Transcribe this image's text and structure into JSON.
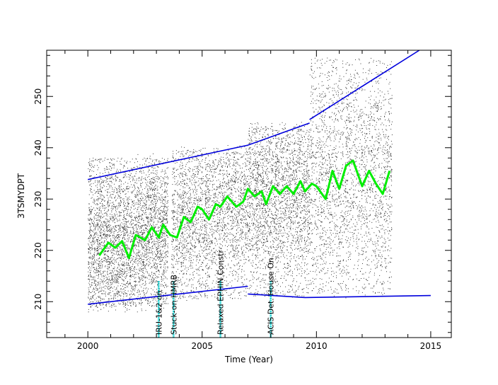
{
  "chart_data": {
    "type": "scatter",
    "title": "",
    "xlabel": "Time (Year)",
    "ylabel": "3TSMYDPT",
    "xlim": [
      1998.2,
      2015.9
    ],
    "ylim": [
      203.0,
      259.0
    ],
    "x_ticks": [
      2000,
      2005,
      2010,
      2015
    ],
    "y_ticks": [
      210,
      220,
      230,
      240,
      250
    ],
    "grid": false,
    "colors": {
      "scatter": "#000000",
      "moving_average": "#00ee00",
      "envelope": "#0000dd",
      "events": "#00cccc"
    },
    "series": [
      {
        "kind": "scatter-density",
        "segments": [
          {
            "x_start": 2000.0,
            "x_end": 2003.5,
            "y_min": 209.0,
            "y_max": 238.0
          },
          {
            "x_start": 2003.65,
            "x_end": 2007.0,
            "y_min": 210.5,
            "y_max": 239.5
          },
          {
            "x_start": 2007.0,
            "x_end": 2009.7,
            "y_min": 211.0,
            "y_max": 244.0
          },
          {
            "x_start": 2009.7,
            "x_end": 2013.3,
            "y_min": 211.5,
            "y_max": 257.5
          }
        ]
      },
      {
        "kind": "moving-average",
        "x": [
          2000.5,
          2000.9,
          2001.2,
          2001.5,
          2001.8,
          2002.1,
          2002.5,
          2002.8,
          2003.1,
          2003.3,
          2003.6,
          2003.9,
          2004.2,
          2004.5,
          2004.8,
          2005.0,
          2005.3,
          2005.6,
          2005.8,
          2006.1,
          2006.5,
          2006.8,
          2007.0,
          2007.3,
          2007.6,
          2007.8,
          2008.1,
          2008.4,
          2008.7,
          2009.0,
          2009.3,
          2009.5,
          2009.8,
          2010.0,
          2010.4,
          2010.7,
          2011.0,
          2011.3,
          2011.6,
          2012.0,
          2012.3,
          2012.6,
          2012.9,
          2013.2
        ],
        "y": [
          219.0,
          221.5,
          220.5,
          221.8,
          218.5,
          223.0,
          222.0,
          224.5,
          222.5,
          225.0,
          223.0,
          222.5,
          226.5,
          225.5,
          228.5,
          228.0,
          226.0,
          229.0,
          228.5,
          230.5,
          228.5,
          229.5,
          232.0,
          230.5,
          231.5,
          229.0,
          232.5,
          231.0,
          232.5,
          231.0,
          233.5,
          231.5,
          233.0,
          232.5,
          230.0,
          235.5,
          232.0,
          236.5,
          237.5,
          232.5,
          235.5,
          233.0,
          231.0,
          235.5
        ]
      },
      {
        "kind": "envelope-upper",
        "segments": [
          {
            "x": [
              2000.0,
              2007.0,
              2009.7
            ],
            "y": [
              233.8,
              240.5,
              244.8
            ]
          },
          {
            "x": [
              2009.7,
              2014.5
            ],
            "y": [
              245.5,
              259.0
            ]
          }
        ]
      },
      {
        "kind": "envelope-lower",
        "segments": [
          {
            "x": [
              2000.0,
              2007.0
            ],
            "y": [
              209.5,
              213.0
            ]
          },
          {
            "x": [
              2007.0,
              2009.5,
              2015.0
            ],
            "y": [
              211.5,
              210.8,
              211.2
            ]
          }
        ]
      }
    ],
    "events": [
      {
        "x": 2003.1,
        "label": "IRU-1&2 on"
      },
      {
        "x": 2003.75,
        "label": "Stuck-on HMRB"
      },
      {
        "x": 2005.8,
        "label": "Relaxed EPHIN Constr"
      },
      {
        "x": 2008.0,
        "label": "ACIS Det. House On"
      }
    ]
  }
}
